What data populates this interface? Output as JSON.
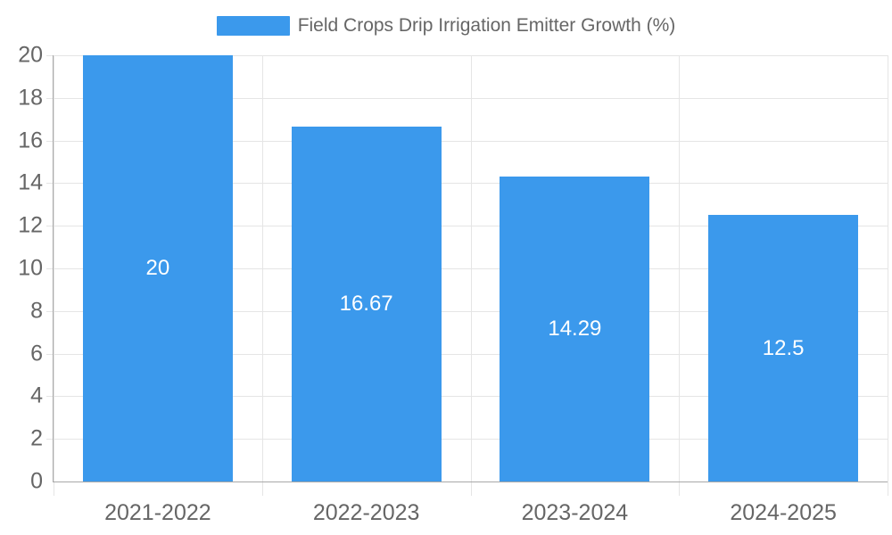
{
  "chart_data": {
    "type": "bar",
    "title": "Field Crops Drip Irrigation Emitter Growth (%)",
    "legend_position": "top-center",
    "categories": [
      "2021-2022",
      "2022-2023",
      "2023-2024",
      "2024-2025"
    ],
    "values": [
      20,
      16.67,
      14.29,
      12.5
    ],
    "value_labels": [
      "20",
      "16.67",
      "14.29",
      "12.5"
    ],
    "xlabel": "",
    "ylabel": "",
    "ylim": [
      0,
      20
    ],
    "ytick_step": 2,
    "yticks": [
      0,
      2,
      4,
      6,
      8,
      10,
      12,
      14,
      16,
      18,
      20
    ],
    "grid": true,
    "colors": {
      "bar": "#3b99ec",
      "value_label": "#ffffff",
      "axis_text": "#666666",
      "axis_line": "#a8a8a8",
      "gridline": "#e5e5e5",
      "background": "#ffffff"
    }
  }
}
